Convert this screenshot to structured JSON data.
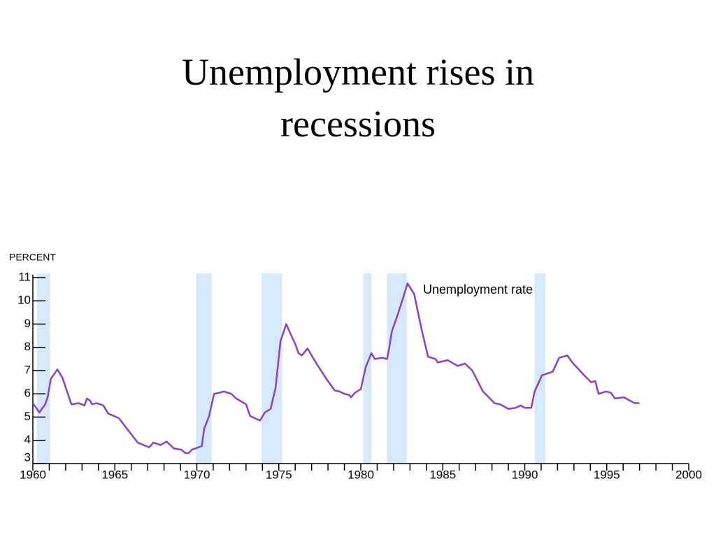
{
  "chart_data": {
    "type": "line",
    "title": "Unemployment rises in recessions",
    "ylabel": "PERCENT",
    "x": [
      1960.0,
      1960.4,
      1960.75,
      1960.9,
      1961.1,
      1961.5,
      1961.8,
      1962.35,
      1962.8,
      1963.15,
      1963.3,
      1963.5,
      1963.6,
      1963.9,
      1964.3,
      1964.6,
      1965.25,
      1965.9,
      1966.4,
      1967.1,
      1967.35,
      1967.8,
      1968.15,
      1968.6,
      1969.05,
      1969.3,
      1969.5,
      1969.7,
      1970.3,
      1970.45,
      1970.75,
      1971.05,
      1971.4,
      1971.65,
      1972.1,
      1972.4,
      1973.0,
      1973.25,
      1973.85,
      1974.15,
      1974.5,
      1974.8,
      1975.1,
      1975.45,
      1975.8,
      1976.0,
      1976.2,
      1976.4,
      1976.75,
      1977.3,
      1977.85,
      1978.4,
      1978.7,
      1979.0,
      1979.3,
      1979.4,
      1979.65,
      1980.0,
      1980.3,
      1980.65,
      1980.85,
      1981.3,
      1981.6,
      1981.7,
      1981.9,
      1982.2,
      1982.5,
      1982.85,
      1983.25,
      1983.7,
      1984.1,
      1984.55,
      1984.7,
      1985.3,
      1985.9,
      1986.35,
      1986.8,
      1987.45,
      1988.15,
      1988.5,
      1989.0,
      1989.45,
      1989.75,
      1990.0,
      1990.4,
      1990.6,
      1991.05,
      1991.7,
      1992.1,
      1992.6,
      1992.9,
      1993.55,
      1994.05,
      1994.3,
      1994.5,
      1994.95,
      1995.25,
      1995.5,
      1996.05,
      1996.7,
      1997.0
    ],
    "series": [
      {
        "name": "Unemployment rate",
        "color": "#8a3fd1",
        "values": [
          5.6,
          5.2,
          5.55,
          5.85,
          6.65,
          7.05,
          6.7,
          5.55,
          5.6,
          5.5,
          5.8,
          5.7,
          5.55,
          5.6,
          5.5,
          5.15,
          4.95,
          4.35,
          3.9,
          3.7,
          3.9,
          3.8,
          3.95,
          3.65,
          3.6,
          3.45,
          3.45,
          3.6,
          3.75,
          4.5,
          5.05,
          6.0,
          6.05,
          6.1,
          6.0,
          5.8,
          5.55,
          5.05,
          4.85,
          5.2,
          5.35,
          6.25,
          8.25,
          9.0,
          8.45,
          8.15,
          7.75,
          7.65,
          7.95,
          7.3,
          6.7,
          6.15,
          6.1,
          6.0,
          5.95,
          5.85,
          6.05,
          6.2,
          7.15,
          7.75,
          7.5,
          7.55,
          7.5,
          7.85,
          8.7,
          9.3,
          9.95,
          10.75,
          10.3,
          8.8,
          7.6,
          7.5,
          7.35,
          7.45,
          7.2,
          7.3,
          7.0,
          6.1,
          5.6,
          5.55,
          5.35,
          5.4,
          5.5,
          5.4,
          5.4,
          6.1,
          6.8,
          6.95,
          7.55,
          7.65,
          7.35,
          6.85,
          6.5,
          6.55,
          6.0,
          6.1,
          6.05,
          5.8,
          5.85,
          5.6,
          5.6
        ]
      }
    ],
    "recessions": [
      [
        1960.25,
        1961.05
      ],
      [
        1969.95,
        1970.9
      ],
      [
        1973.95,
        1975.2
      ],
      [
        1980.15,
        1980.65
      ],
      [
        1981.6,
        1982.8
      ],
      [
        1990.6,
        1991.25
      ]
    ],
    "recession_color": "#d6e9fb",
    "xlim": [
      1960,
      2000
    ],
    "xticks": [
      1960,
      1965,
      1970,
      1975,
      1980,
      1985,
      1990,
      1995,
      2000
    ],
    "ylim": [
      3,
      11
    ],
    "yticks": [
      3,
      4,
      5,
      6,
      7,
      8,
      9,
      10,
      11
    ]
  }
}
